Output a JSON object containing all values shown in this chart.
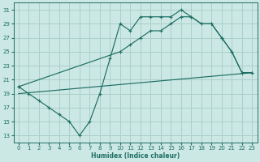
{
  "xlabel": "Humidex (Indice chaleur)",
  "background_color": "#cce8e4",
  "grid_color": "#aacfca",
  "line_color": "#1e6e64",
  "xlim": [
    -0.5,
    23.5
  ],
  "ylim": [
    12,
    32
  ],
  "xticks": [
    0,
    1,
    2,
    3,
    4,
    5,
    6,
    7,
    8,
    9,
    10,
    11,
    12,
    13,
    14,
    15,
    16,
    17,
    18,
    19,
    20,
    21,
    22,
    23
  ],
  "yticks": [
    13,
    15,
    17,
    19,
    21,
    23,
    25,
    27,
    29,
    31
  ],
  "series": [
    {
      "x": [
        0,
        1,
        2,
        3,
        4,
        5,
        6,
        7,
        8,
        9,
        10,
        11,
        12,
        13,
        14,
        15,
        16,
        17,
        18,
        19,
        20,
        21,
        22,
        23
      ],
      "y": [
        20,
        19,
        18,
        17,
        16,
        15,
        13,
        15,
        19,
        24,
        29,
        28,
        30,
        30,
        30,
        30,
        31,
        30,
        29,
        29,
        27,
        25,
        22,
        22
      ]
    },
    {
      "x": [
        0,
        10,
        11,
        12,
        13,
        14,
        15,
        16,
        17,
        18,
        19,
        20,
        21,
        22,
        23
      ],
      "y": [
        20,
        25,
        26,
        27,
        28,
        28,
        29,
        30,
        30,
        29,
        29,
        27,
        25,
        22,
        22
      ]
    },
    {
      "x": [
        0,
        23
      ],
      "y": [
        19,
        22
      ]
    }
  ]
}
